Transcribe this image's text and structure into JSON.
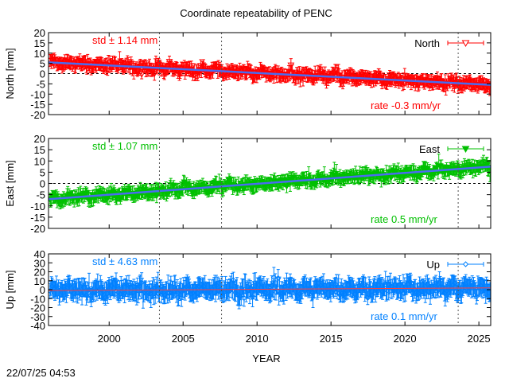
{
  "chart_data": {
    "type": "scatter",
    "title": "Coordinate repeatability of PENC",
    "xlabel": "YEAR",
    "xlim": [
      1995.9,
      2025.8
    ],
    "xticks": [
      2000,
      2005,
      2010,
      2015,
      2020,
      2025
    ],
    "vlines": [
      2003.4,
      2007.6,
      2023.6
    ],
    "panels": [
      {
        "name": "North",
        "ylabel": "North [mm]",
        "ylim": [
          -20,
          20
        ],
        "yticks": [
          20,
          15,
          10,
          5,
          0,
          -5,
          -10,
          -15,
          -20
        ],
        "color": "#ff0000",
        "marker": "triangle-down-open",
        "std_label": "std ± 1.14 mm",
        "rate_label": "rate -0.3 mm/yr",
        "trend_start": 5.5,
        "trend_end": -5.5,
        "noise": 2.4
      },
      {
        "name": "East",
        "ylabel": "East [mm]",
        "ylim": [
          -20,
          20
        ],
        "yticks": [
          20,
          15,
          10,
          5,
          0,
          -5,
          -10,
          -15,
          -20
        ],
        "color": "#00c000",
        "marker": "triangle-down-filled",
        "std_label": "std ± 1.07 mm",
        "rate_label": "rate  0.5 mm/yr",
        "trend_start": -7,
        "trend_end": 7.5,
        "noise": 2.2
      },
      {
        "name": "Up",
        "ylabel": "Up [mm]",
        "ylim": [
          -40,
          40
        ],
        "yticks": [
          40,
          30,
          20,
          10,
          0,
          -10,
          -20,
          -30,
          -40
        ],
        "color": "#0080ff",
        "marker": "diamond-open",
        "std_label": "std ± 4.63 mm",
        "rate_label": "rate  0.1 mm/yr",
        "trend_start": -1,
        "trend_end": 2,
        "noise": 8
      }
    ],
    "trend_color": "#4a6cf0"
  },
  "footer": {
    "timestamp": "22/07/25 04:53"
  }
}
